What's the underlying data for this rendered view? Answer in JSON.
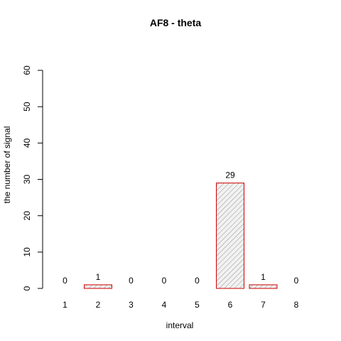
{
  "chart_data": {
    "type": "bar",
    "title": "AF8  -  theta",
    "xlabel": "interval",
    "ylabel": "the number of signal",
    "categories": [
      "1",
      "2",
      "3",
      "4",
      "5",
      "6",
      "7",
      "8"
    ],
    "values": [
      0,
      1,
      0,
      0,
      0,
      29,
      1,
      0
    ],
    "data_labels": [
      "0",
      "1",
      "0",
      "0",
      "0",
      "29",
      "1",
      "0"
    ],
    "ylim": [
      0,
      60
    ],
    "yticks": [
      "0",
      "10",
      "20",
      "30",
      "40",
      "50",
      "60"
    ],
    "grid": false,
    "bar_border_color": "#cc0000",
    "bar_fill": "hatched grey"
  }
}
